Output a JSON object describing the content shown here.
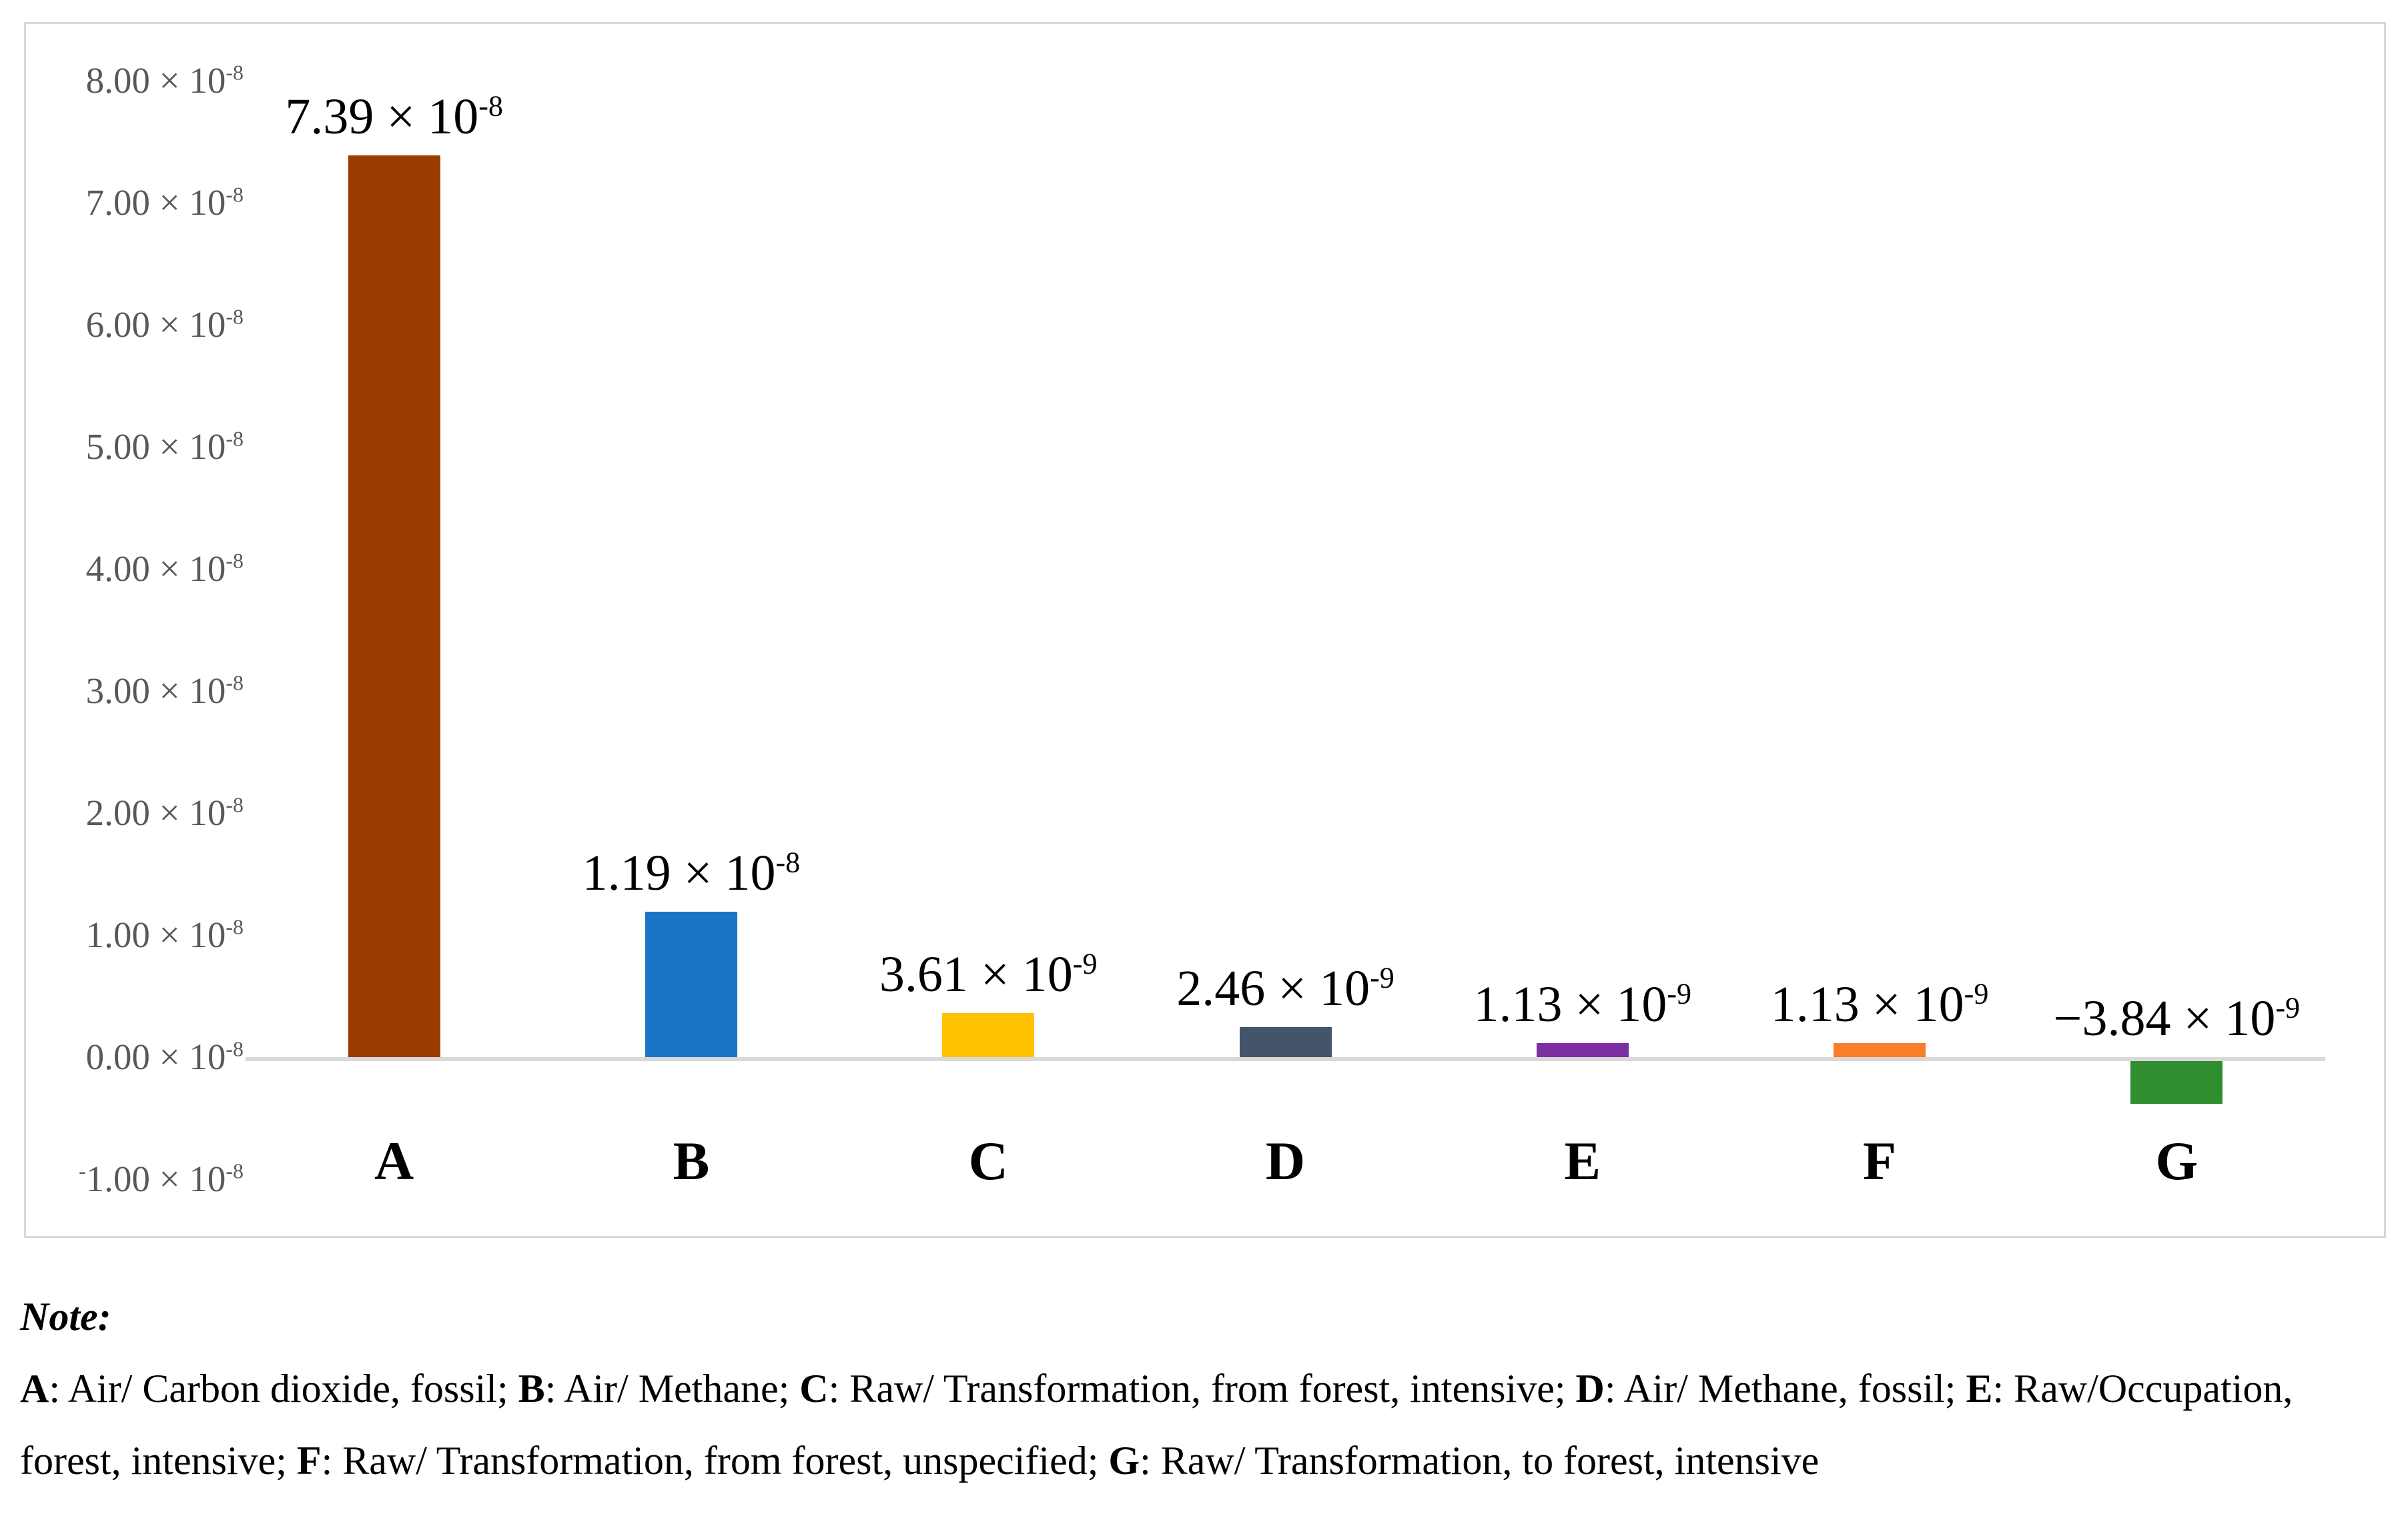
{
  "chart_data": {
    "type": "bar",
    "title": "",
    "xlabel": "",
    "ylabel": "",
    "categories": [
      "A",
      "B",
      "C",
      "D",
      "E",
      "F",
      "G"
    ],
    "values": [
      7.39e-08,
      1.19e-08,
      3.61e-09,
      2.46e-09,
      1.13e-09,
      1.13e-09,
      -3.84e-09
    ],
    "bar_colors": [
      "#9B3D00",
      "#1B74C8",
      "#FFC000",
      "#44546A",
      "#7B2FA0",
      "#F87E28",
      "#2F8E2F"
    ],
    "bar_labels": [
      [
        {
          "text": "7.39 × 10"
        },
        {
          "text": "-8",
          "sup": true
        }
      ],
      [
        {
          "text": "1.19 × 10"
        },
        {
          "text": "-8",
          "sup": true
        }
      ],
      [
        {
          "text": "3.61 × 10"
        },
        {
          "text": "-9",
          "sup": true
        }
      ],
      [
        {
          "text": "2.46 × 10"
        },
        {
          "text": "-9",
          "sup": true
        }
      ],
      [
        {
          "text": "1.13 × 10"
        },
        {
          "text": "-9",
          "sup": true
        }
      ],
      [
        {
          "text": "1.13 × 10"
        },
        {
          "text": "-9",
          "sup": true
        }
      ],
      [
        {
          "text": "−3.84 × 10"
        },
        {
          "text": "-9",
          "sup": true
        }
      ]
    ],
    "y_ticks": [
      {
        "value": 8e-08,
        "label": [
          {
            "text": "8.00 × 10"
          },
          {
            "text": "-8",
            "sup": true
          }
        ]
      },
      {
        "value": 7e-08,
        "label": [
          {
            "text": "7.00 × 10"
          },
          {
            "text": "-8",
            "sup": true
          }
        ]
      },
      {
        "value": 6e-08,
        "label": [
          {
            "text": "6.00 × 10"
          },
          {
            "text": "-8",
            "sup": true
          }
        ]
      },
      {
        "value": 5e-08,
        "label": [
          {
            "text": "5.00 × 10"
          },
          {
            "text": "-8",
            "sup": true
          }
        ]
      },
      {
        "value": 4e-08,
        "label": [
          {
            "text": "4.00 × 10"
          },
          {
            "text": "-8",
            "sup": true
          }
        ]
      },
      {
        "value": 3e-08,
        "label": [
          {
            "text": "3.00 × 10"
          },
          {
            "text": "-8",
            "sup": true
          }
        ]
      },
      {
        "value": 2e-08,
        "label": [
          {
            "text": "2.00 × 10"
          },
          {
            "text": "-8",
            "sup": true
          }
        ]
      },
      {
        "value": 1e-08,
        "label": [
          {
            "text": "1.00 × 10"
          },
          {
            "text": "-8",
            "sup": true
          }
        ]
      },
      {
        "value": 0,
        "label": [
          {
            "text": "0.00 × 10"
          },
          {
            "text": "-8",
            "sup": true
          }
        ]
      },
      {
        "value": -1e-08,
        "label": [
          {
            "text": "-",
            "sup": true
          },
          {
            "text": "1.00 × 10"
          },
          {
            "text": "-8",
            "sup": true
          }
        ]
      }
    ],
    "ylim": [
      -1e-08,
      8e-08
    ],
    "grid": false,
    "legend": "none",
    "axis_color": "#D9D9D9",
    "tick_text_color": "#595959",
    "plot_background": "#FFFFFF"
  },
  "note": {
    "title": "Note:",
    "segments": [
      {
        "text": "A",
        "b": true
      },
      {
        "text": ": Air/ Carbon dioxide, fossil; "
      },
      {
        "text": "B",
        "b": true
      },
      {
        "text": ": Air/ Methane; "
      },
      {
        "text": "C",
        "b": true
      },
      {
        "text": ": Raw/ Transformation, from forest, intensive; "
      },
      {
        "text": "D",
        "b": true
      },
      {
        "text": ": Air/ Methane, fossil; "
      },
      {
        "text": "E",
        "b": true
      },
      {
        "text": ": Raw/Occupation, forest, intensive; "
      },
      {
        "text": "F",
        "b": true
      },
      {
        "text": ": Raw/ Transformation, from forest, unspecified; "
      },
      {
        "text": "G",
        "b": true
      },
      {
        "text": ": Raw/ Transformation, to forest, intensive"
      }
    ]
  }
}
